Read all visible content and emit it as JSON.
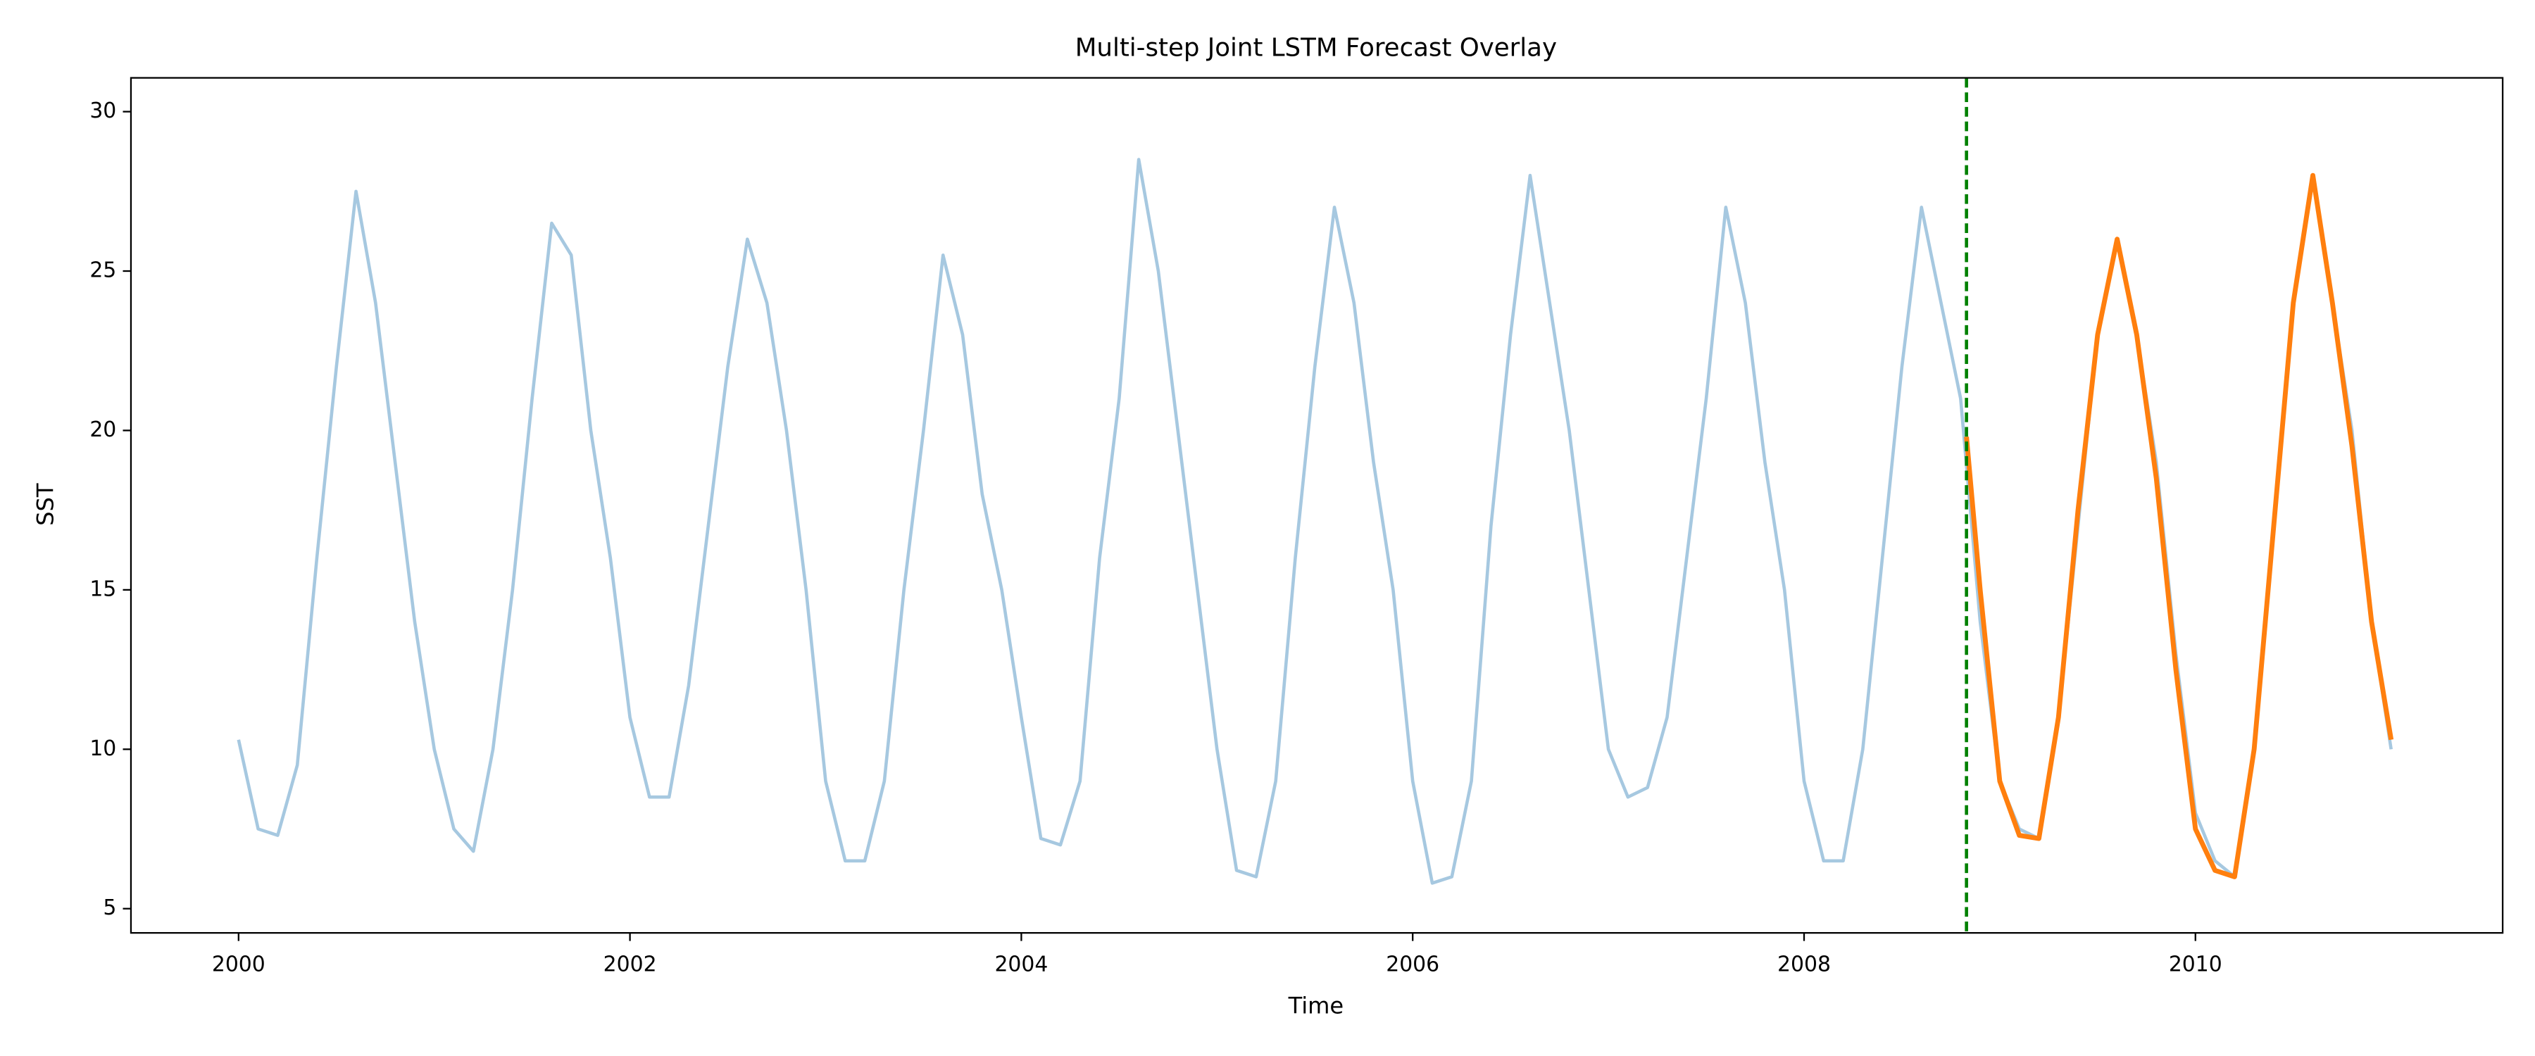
{
  "chart_data": {
    "type": "line",
    "title": "Multi-step Joint LSTM Forecast Overlay",
    "xlabel": "Time",
    "ylabel": "SST",
    "xlim": [
      1999.45,
      2011.57
    ],
    "ylim": [
      4.24,
      31.06
    ],
    "xticks": [
      2000,
      2002,
      2004,
      2006,
      2008,
      2010
    ],
    "yticks": [
      5,
      10,
      15,
      20,
      25,
      30
    ],
    "grid": false,
    "vline": {
      "x": 2008.83,
      "color": "#008000"
    },
    "series": [
      {
        "color": "#a6c8e0",
        "x": [
          2000.0,
          2000.1,
          2000.2,
          2000.3,
          2000.4,
          2000.5,
          2000.6,
          2000.7,
          2000.8,
          2000.9,
          2001.0,
          2001.1,
          2001.2,
          2001.3,
          2001.4,
          2001.5,
          2001.6,
          2001.7,
          2001.8,
          2001.9,
          2002.0,
          2002.1,
          2002.2,
          2002.3,
          2002.4,
          2002.5,
          2002.6,
          2002.7,
          2002.8,
          2002.9,
          2003.0,
          2003.1,
          2003.2,
          2003.3,
          2003.4,
          2003.5,
          2003.6,
          2003.7,
          2003.8,
          2003.9,
          2004.0,
          2004.1,
          2004.2,
          2004.3,
          2004.4,
          2004.5,
          2004.6,
          2004.7,
          2004.8,
          2004.9,
          2005.0,
          2005.1,
          2005.2,
          2005.3,
          2005.4,
          2005.5,
          2005.6,
          2005.7,
          2005.8,
          2005.9,
          2006.0,
          2006.1,
          2006.2,
          2006.3,
          2006.4,
          2006.5,
          2006.6,
          2006.7,
          2006.8,
          2006.9,
          2007.0,
          2007.1,
          2007.2,
          2007.3,
          2007.4,
          2007.5,
          2007.6,
          2007.7,
          2007.8,
          2007.9,
          2008.0,
          2008.1,
          2008.2,
          2008.3,
          2008.4,
          2008.5,
          2008.6,
          2008.7,
          2008.8,
          2008.9,
          2009.0,
          2009.1,
          2009.2,
          2009.3,
          2009.4,
          2009.5,
          2009.6,
          2009.7,
          2009.8,
          2009.9,
          2010.0,
          2010.1,
          2010.2,
          2010.3,
          2010.4,
          2010.5,
          2010.6,
          2010.7,
          2010.8,
          2010.9,
          2011.0
        ],
        "values": [
          10.3,
          7.5,
          7.3,
          9.5,
          16,
          22,
          27.5,
          24,
          19,
          14,
          10,
          7.5,
          6.8,
          10,
          15,
          21,
          26.5,
          25.5,
          20,
          16,
          11,
          8.5,
          8.5,
          12,
          17,
          22,
          26,
          24,
          20,
          15,
          9,
          6.5,
          6.5,
          9,
          15,
          20,
          25.5,
          23,
          18,
          15,
          11,
          7.2,
          7,
          9,
          16,
          21,
          28.5,
          25,
          20,
          15,
          10,
          6.2,
          6,
          9,
          16,
          22,
          27,
          24,
          19,
          15,
          9,
          5.8,
          6,
          9,
          17,
          23,
          28,
          24,
          20,
          15,
          10,
          8.5,
          8.8,
          11,
          16,
          21,
          27,
          24,
          19,
          15,
          9,
          6.5,
          6.5,
          10,
          16,
          22,
          27,
          24,
          21,
          14,
          9,
          7.5,
          7.2,
          11,
          17,
          23,
          26,
          23,
          19,
          13,
          8,
          6.5,
          6,
          10,
          17,
          24,
          28,
          24,
          20,
          14,
          10
        ]
      },
      {
        "color": "#ff7f0e",
        "x": [
          2008.83,
          2008.9,
          2009.0,
          2009.1,
          2009.2,
          2009.3,
          2009.4,
          2009.5,
          2009.6,
          2009.7,
          2009.8,
          2009.9,
          2010.0,
          2010.1,
          2010.2,
          2010.3,
          2010.4,
          2010.5,
          2010.6,
          2010.7,
          2010.8,
          2010.9,
          2011.0
        ],
        "values": [
          19.8,
          15,
          9,
          7.3,
          7.2,
          11,
          17.5,
          23,
          26,
          23,
          18.5,
          12.5,
          7.5,
          6.2,
          6,
          10,
          17,
          24,
          28,
          24,
          19.5,
          14,
          10.3
        ]
      }
    ]
  }
}
